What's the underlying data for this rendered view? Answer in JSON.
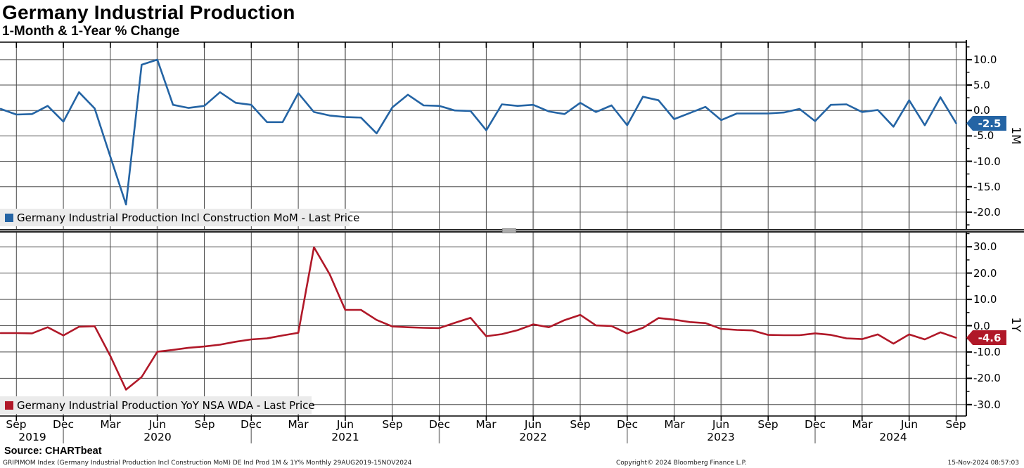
{
  "header": {
    "title": "Germany Industrial Production",
    "subtitle": "1-Month & 1-Year % Change"
  },
  "source_line": "Source: CHARTbeat",
  "footer": {
    "left": "GRIPIMOM Index (Germany Industrial Production Incl Construction MoM) DE Ind Prod 1M & 1Y%  Monthly 29AUG2019-15NOV2024",
    "copyright": "Copyright© 2024 Bloomberg Finance L.P.",
    "timestamp": "15-Nov-2024 08:57:03"
  },
  "x_axis": {
    "quarter_ticks": [
      {
        "label": "Sep",
        "month_index": 1
      },
      {
        "label": "Dec",
        "month_index": 4
      },
      {
        "label": "Mar",
        "month_index": 7
      },
      {
        "label": "Jun",
        "month_index": 10
      },
      {
        "label": "Sep",
        "month_index": 13
      },
      {
        "label": "Dec",
        "month_index": 16
      },
      {
        "label": "Mar",
        "month_index": 19
      },
      {
        "label": "Jun",
        "month_index": 22
      },
      {
        "label": "Sep",
        "month_index": 25
      },
      {
        "label": "Dec",
        "month_index": 28
      },
      {
        "label": "Mar",
        "month_index": 31
      },
      {
        "label": "Jun",
        "month_index": 34
      },
      {
        "label": "Sep",
        "month_index": 37
      },
      {
        "label": "Dec",
        "month_index": 40
      },
      {
        "label": "Mar",
        "month_index": 43
      },
      {
        "label": "Jun",
        "month_index": 46
      },
      {
        "label": "Sep",
        "month_index": 49
      },
      {
        "label": "Dec",
        "month_index": 52
      },
      {
        "label": "Mar",
        "month_index": 55
      },
      {
        "label": "Jun",
        "month_index": 58
      },
      {
        "label": "Sep",
        "month_index": 61
      }
    ],
    "year_labels": [
      {
        "label": "2019",
        "month_index": 2
      },
      {
        "label": "2020",
        "month_index": 10
      },
      {
        "label": "2021",
        "month_index": 22
      },
      {
        "label": "2022",
        "month_index": 34
      },
      {
        "label": "2023",
        "month_index": 46
      },
      {
        "label": "2024",
        "month_index": 57
      }
    ]
  },
  "chart_data": [
    {
      "type": "line",
      "panel": "top",
      "legend": "Germany Industrial Production Incl Construction MoM - Last Price",
      "axis_label": "1M",
      "color": "#2464a4",
      "last_price_label": "-2.5",
      "frequency": "monthly",
      "start_month": "Aug 2019",
      "end_month": "Sep 2024",
      "ylim": [
        -23.5,
        13.4
      ],
      "ytick_labels": [
        "10.0",
        "5.0",
        "0.0",
        "-5.0",
        "-10.0",
        "-15.0",
        "-20.0"
      ],
      "values": [
        0.3,
        -0.8,
        -0.7,
        0.9,
        -2.2,
        3.6,
        0.4,
        -9.1,
        -18.5,
        9.0,
        10.0,
        1.1,
        0.5,
        0.9,
        3.6,
        1.5,
        1.1,
        -2.3,
        -2.3,
        3.4,
        -0.3,
        -1.0,
        -1.3,
        -1.4,
        -4.5,
        0.6,
        3.1,
        1.0,
        0.9,
        0.0,
        -0.1,
        -3.9,
        1.2,
        0.9,
        1.1,
        -0.2,
        -0.7,
        1.5,
        -0.3,
        1.0,
        -2.9,
        2.7,
        2.0,
        -1.7,
        -0.5,
        0.7,
        -1.9,
        -0.6,
        -0.6,
        -0.6,
        -0.4,
        0.3,
        -2.1,
        1.1,
        1.2,
        -0.3,
        0.1,
        -3.2,
        2.0,
        -2.9,
        2.6,
        -2.5
      ]
    },
    {
      "type": "line",
      "panel": "bottom",
      "legend": "Germany Industrial Production YoY NSA WDA - Last Price",
      "axis_label": "1Y",
      "color": "#b01828",
      "last_price_label": "-4.6",
      "frequency": "monthly",
      "start_month": "Aug 2019",
      "end_month": "Sep 2024",
      "ylim": [
        -35.4,
        35.4
      ],
      "ytick_labels": [
        "30.0",
        "20.0",
        "10.0",
        "0.0",
        "-10.0",
        "-20.0",
        "-30.0"
      ],
      "values": [
        -2.8,
        -2.8,
        -2.9,
        -0.6,
        -3.7,
        -0.4,
        -0.2,
        -11.5,
        -24.3,
        -19.5,
        -9.9,
        -9.2,
        -8.4,
        -7.9,
        -7.2,
        -6.1,
        -5.2,
        -4.8,
        -3.7,
        -2.7,
        29.8,
        19.6,
        6.0,
        6.0,
        2.2,
        -0.3,
        -0.6,
        -0.8,
        -0.9,
        1.1,
        3.0,
        -4.0,
        -3.2,
        -1.7,
        0.5,
        -0.6,
        2.1,
        4.1,
        0.1,
        -0.1,
        -2.9,
        -0.8,
        2.9,
        2.3,
        1.4,
        1.0,
        -1.2,
        -1.6,
        -1.8,
        -3.5,
        -3.6,
        -3.6,
        -2.9,
        -3.5,
        -4.8,
        -5.1,
        -3.3,
        -6.8,
        -3.3,
        -5.2,
        -2.5,
        -4.6
      ]
    }
  ]
}
